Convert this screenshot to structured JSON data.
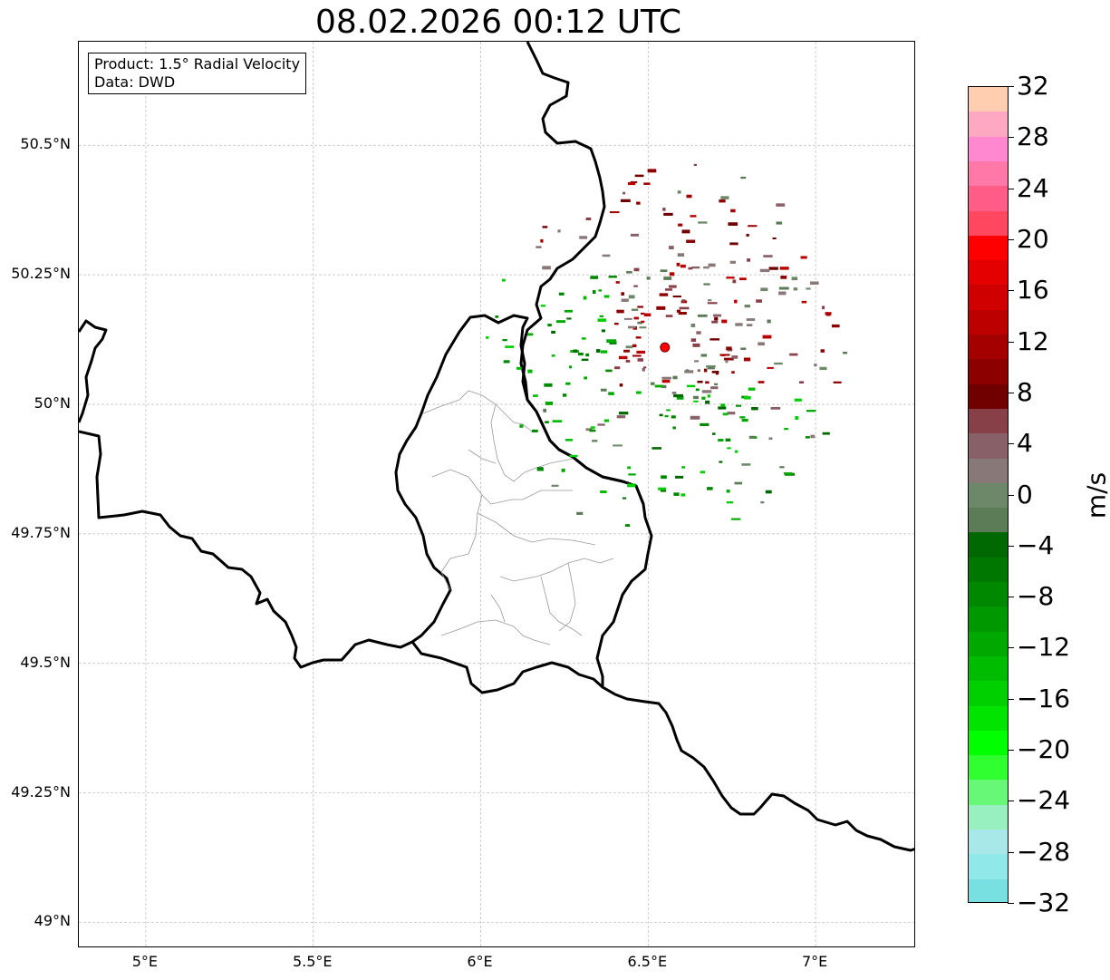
{
  "title": "08.02.2026 00:12 UTC",
  "info": {
    "product": "Product: 1.5° Radial Velocity",
    "data": "Data: DWD"
  },
  "map": {
    "lon_range": [
      4.8,
      7.3
    ],
    "lat_range": [
      48.95,
      50.7
    ],
    "lat_ticks": [
      {
        "value": 50.5,
        "label": "50.5°N"
      },
      {
        "value": 50.25,
        "label": "50.25°N"
      },
      {
        "value": 50.0,
        "label": "50°N"
      },
      {
        "value": 49.75,
        "label": "49.75°N"
      },
      {
        "value": 49.5,
        "label": "49.5°N"
      },
      {
        "value": 49.25,
        "label": "49.25°N"
      },
      {
        "value": 49.0,
        "label": "49°N"
      }
    ],
    "lon_ticks": [
      {
        "value": 5.0,
        "label": "5°E"
      },
      {
        "value": 5.5,
        "label": "5.5°E"
      },
      {
        "value": 6.0,
        "label": "6°E"
      },
      {
        "value": 6.5,
        "label": "6.5°E"
      },
      {
        "value": 7.0,
        "label": "7°E"
      }
    ],
    "radar_site": {
      "lon": 6.55,
      "lat": 50.11,
      "color": "#ff0000"
    },
    "grid_color": "#bbbbbb",
    "border_color": "#000000"
  },
  "colorbar": {
    "unit": "m/s",
    "vmin": -32,
    "vmax": 32,
    "tick_labels": [
      {
        "value": 32,
        "label": "32"
      },
      {
        "value": 28,
        "label": "28"
      },
      {
        "value": 24,
        "label": "24"
      },
      {
        "value": 20,
        "label": "20"
      },
      {
        "value": 16,
        "label": "16"
      },
      {
        "value": 12,
        "label": "12"
      },
      {
        "value": 8,
        "label": "8"
      },
      {
        "value": 4,
        "label": "4"
      },
      {
        "value": 0,
        "label": "0"
      },
      {
        "value": -4,
        "label": "−4"
      },
      {
        "value": -8,
        "label": "−8"
      },
      {
        "value": -12,
        "label": "−12"
      },
      {
        "value": -16,
        "label": "−16"
      },
      {
        "value": -20,
        "label": "−20"
      },
      {
        "value": -24,
        "label": "−24"
      },
      {
        "value": -28,
        "label": "−28"
      },
      {
        "value": -32,
        "label": "−32"
      }
    ],
    "colors_top_to_bottom": [
      "#ffcdb0",
      "#ffa8c4",
      "#ff88d0",
      "#ff78a8",
      "#ff5c88",
      "#ff4860",
      "#ff0000",
      "#e40000",
      "#d00000",
      "#bc0000",
      "#a40000",
      "#8c0000",
      "#700000",
      "#884048",
      "#886068",
      "#887878",
      "#6c8868",
      "#5c7c58",
      "#006800",
      "#007800",
      "#008800",
      "#009800",
      "#00a800",
      "#00bc00",
      "#00d000",
      "#00e400",
      "#00ff00",
      "#30ff30",
      "#68f878",
      "#98f0c0",
      "#a8e8e8",
      "#90e8e8",
      "#78e0e0"
    ]
  }
}
